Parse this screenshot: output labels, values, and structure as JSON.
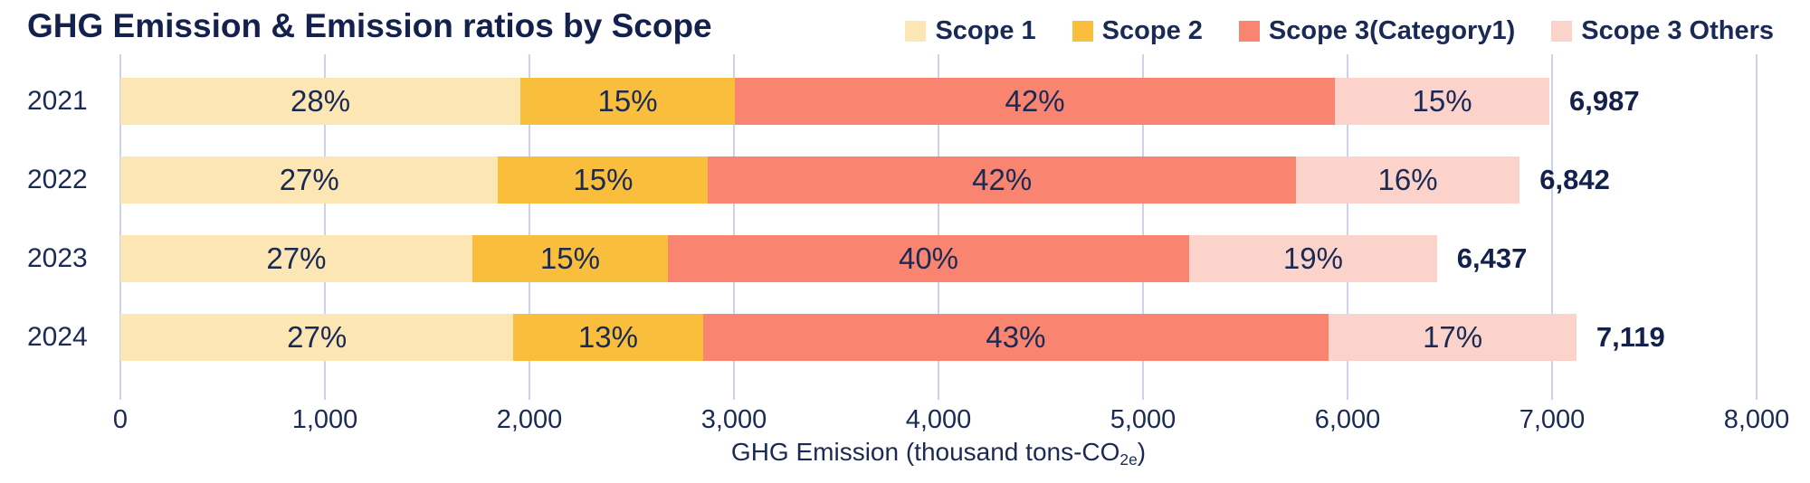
{
  "title": "GHG Emission & Emission ratios by Scope",
  "chart_data": {
    "type": "bar",
    "stacked": true,
    "orientation": "horizontal",
    "title": "GHG Emission & Emission ratios by Scope",
    "categories": [
      "2021",
      "2022",
      "2023",
      "2024"
    ],
    "series": [
      {
        "name": "Scope 1",
        "color": "#FBE6B4",
        "percents": [
          28,
          27,
          27,
          27
        ]
      },
      {
        "name": "Scope 2",
        "color": "#F9BE3B",
        "percents": [
          15,
          15,
          15,
          13
        ]
      },
      {
        "name": "Scope 3(Category1)",
        "color": "#F98570",
        "percents": [
          42,
          42,
          40,
          43
        ]
      },
      {
        "name": "Scope 3 Others",
        "color": "#FBD3CA",
        "percents": [
          15,
          16,
          19,
          17
        ]
      }
    ],
    "percent_labels": [
      [
        "28%",
        "15%",
        "42%",
        "15%"
      ],
      [
        "27%",
        "15%",
        "42%",
        "16%"
      ],
      [
        "27%",
        "15%",
        "40%",
        "19%"
      ],
      [
        "27%",
        "13%",
        "43%",
        "17%"
      ]
    ],
    "totals": [
      6987,
      6842,
      6437,
      7119
    ],
    "total_labels": [
      "6,987",
      "6,842",
      "6,437",
      "7,119"
    ],
    "xlim": [
      0,
      8000
    ],
    "xticks": [
      "0",
      "1,000",
      "2,000",
      "3,000",
      "4,000",
      "5,000",
      "6,000",
      "7,000",
      "8,000"
    ],
    "xlabel": {
      "prefix": "GHG Emission (thousand tons-CO",
      "sub": "2e",
      "suffix": ")"
    },
    "grid": true,
    "legend_position": "top-right"
  },
  "colors": {
    "text_navy": "#1A2A55",
    "title_navy": "#13214C",
    "gridline": "#CBD2EF",
    "background": "#FFFFFF"
  }
}
